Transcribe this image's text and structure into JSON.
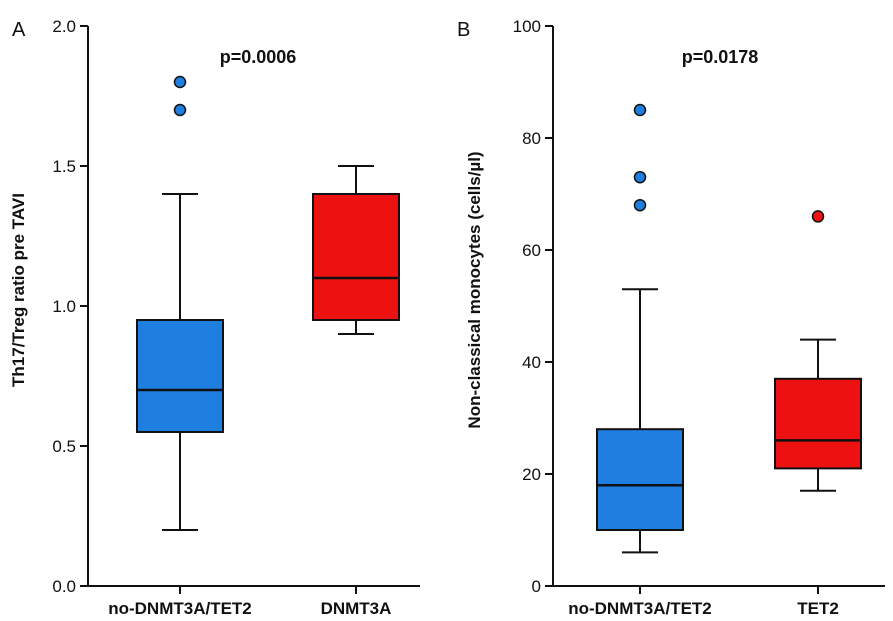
{
  "chart_data": [
    {
      "type": "box",
      "panel_label": "A",
      "title": "",
      "ylabel": "Th17/Treg ratio pre TAVI",
      "xlabel": "",
      "ylim": [
        0,
        2.0
      ],
      "yticks": [
        0,
        0.5,
        1.0,
        1.5,
        2.0
      ],
      "ytick_labels": [
        "0.0",
        "0.5",
        "1.0",
        "1.5",
        "2.0"
      ],
      "annotation": "p=0.0006",
      "categories": [
        "no-DNMT3A/TET2",
        "DNMT3A"
      ],
      "boxes": [
        {
          "category": "no-DNMT3A/TET2",
          "whisker_low": 0.2,
          "q1": 0.55,
          "median": 0.7,
          "q3": 0.95,
          "whisker_high": 1.4,
          "outliers": [
            1.7,
            1.8
          ],
          "color": "#1f7fe0"
        },
        {
          "category": "DNMT3A",
          "whisker_low": 0.9,
          "q1": 0.95,
          "median": 1.1,
          "q3": 1.4,
          "whisker_high": 1.5,
          "outliers": [],
          "color": "#ee1111"
        }
      ]
    },
    {
      "type": "box",
      "panel_label": "B",
      "title": "",
      "ylabel": "Non-classical monocytes (cells/µl)",
      "xlabel": "",
      "ylim": [
        0,
        100
      ],
      "yticks": [
        0,
        20,
        40,
        60,
        80,
        100
      ],
      "ytick_labels": [
        "0",
        "20",
        "40",
        "60",
        "80",
        "100"
      ],
      "annotation": "p=0.0178",
      "categories": [
        "no-DNMT3A/TET2",
        "TET2"
      ],
      "boxes": [
        {
          "category": "no-DNMT3A/TET2",
          "whisker_low": 6,
          "q1": 10,
          "median": 18,
          "q3": 28,
          "whisker_high": 53,
          "outliers": [
            68,
            73,
            85
          ],
          "color": "#1f7fe0"
        },
        {
          "category": "TET2",
          "whisker_low": 17,
          "q1": 21,
          "median": 26,
          "q3": 37,
          "whisker_high": 44,
          "outliers": [
            66
          ],
          "color": "#ee1111"
        }
      ]
    }
  ]
}
